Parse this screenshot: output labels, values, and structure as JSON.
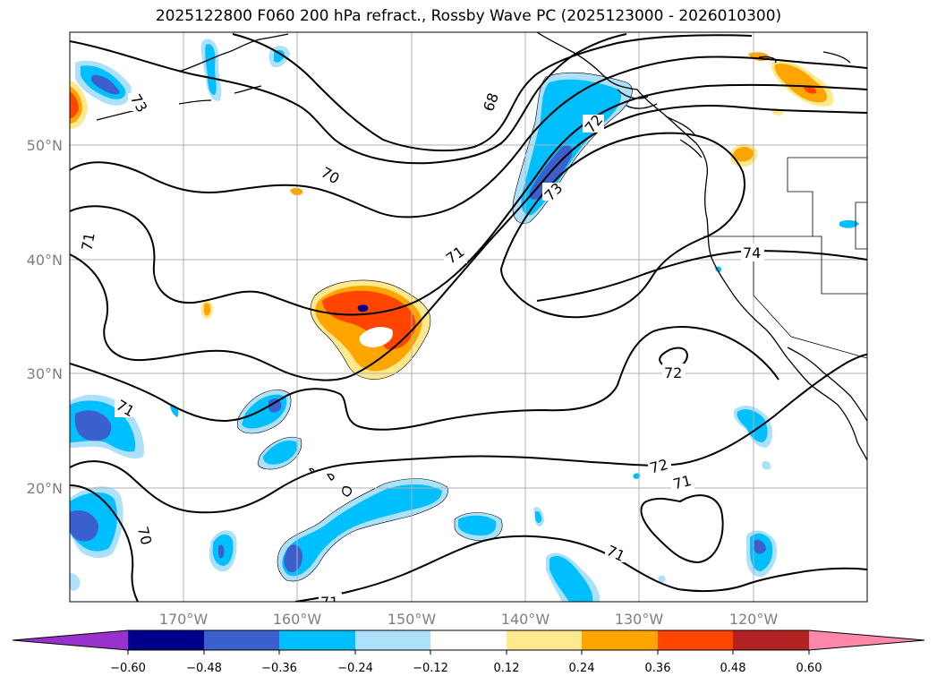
{
  "title": "2025122800 F060 200 hPa refract., Rossby Wave PC (2025123000 - 2026010300)",
  "lat_labels": [
    "50°N",
    "40°N",
    "30°N",
    "20°N"
  ],
  "lon_labels": [
    "170°W",
    "160°W",
    "150°W",
    "140°W",
    "130°W",
    "120°W"
  ],
  "colorbar": {
    "tick_labels": [
      "−0.60",
      "−0.48",
      "−0.36",
      "−0.24",
      "−0.12",
      "0.12",
      "0.24",
      "0.36",
      "0.48",
      "0.60"
    ],
    "colors": [
      "#9932cc",
      "#00008b",
      "#3b5fcd",
      "#00bfff",
      "#ade0fa",
      "#ffffff",
      "#ffe98e",
      "#ffa500",
      "#ff4500",
      "#b22222",
      "#ff88aa"
    ]
  },
  "contour_labels": [
    "73",
    "68",
    "72",
    "70",
    "73",
    "71",
    "71",
    "74",
    "72",
    "71",
    "72",
    "71",
    "71",
    "70",
    "71"
  ],
  "colors": {
    "orange": "#ffa500",
    "orange_red": "#ff4500",
    "light_yellow": "#ffe98e",
    "dark_red": "#b22222",
    "sky_blue": "#00bfff",
    "light_blue": "#ade0fa",
    "royal_blue": "#3b5fcd",
    "navy": "#00008b"
  }
}
